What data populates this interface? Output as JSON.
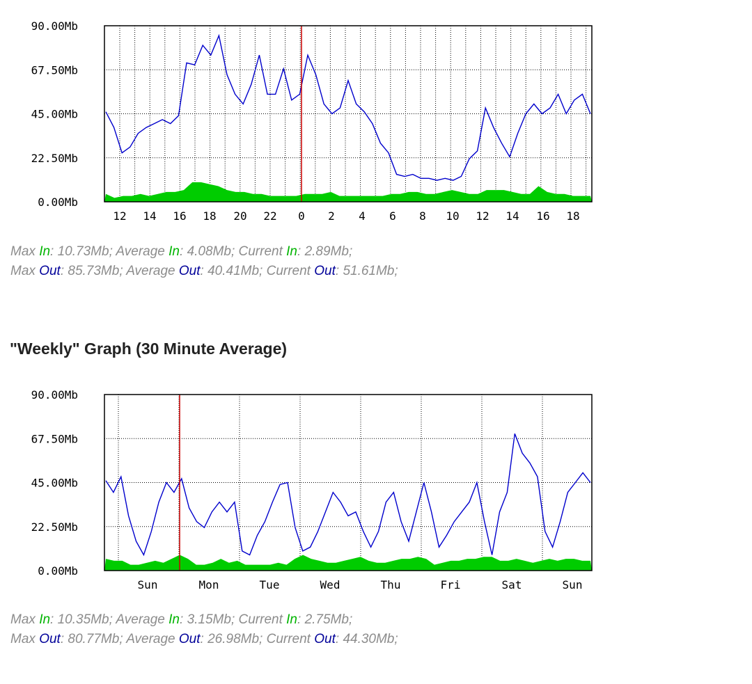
{
  "chart_data": [
    {
      "type": "area",
      "title": "",
      "y_tick_labels": [
        "90.00Mb",
        "67.50Mb",
        "45.00Mb",
        "22.50Mb",
        "0.00Mb"
      ],
      "ylim": [
        0,
        90
      ],
      "y_unit": "Mb",
      "x_tick_labels": [
        "12",
        "14",
        "16",
        "18",
        "20",
        "22",
        "0",
        "2",
        "4",
        "6",
        "8",
        "10",
        "12",
        "14",
        "16",
        "18"
      ],
      "grid": true,
      "marker_label": "0",
      "series": [
        {
          "color": "#00cc00",
          "values": [
            4,
            2,
            3,
            3,
            4,
            3,
            4,
            5,
            5,
            6,
            10,
            10,
            9,
            8,
            6,
            5,
            5,
            4,
            4,
            3,
            3,
            3,
            3,
            4,
            4,
            4,
            5,
            3,
            3,
            3,
            3,
            3,
            3,
            4,
            4,
            5,
            5,
            4,
            4,
            5,
            6,
            5,
            4,
            4,
            6,
            6,
            6,
            5,
            4,
            4,
            8,
            5,
            4,
            4,
            3,
            3,
            3
          ]
        },
        {
          "color": "#0000cc",
          "values": [
            46,
            38,
            25,
            28,
            35,
            38,
            40,
            42,
            40,
            44,
            71,
            70,
            80,
            75,
            85,
            65,
            55,
            50,
            60,
            75,
            55,
            55,
            68,
            52,
            55,
            75,
            65,
            50,
            45,
            48,
            62,
            50,
            46,
            40,
            30,
            25,
            14,
            13,
            14,
            12,
            12,
            11,
            12,
            11,
            13,
            22,
            26,
            48,
            38,
            30,
            23,
            35,
            45,
            50,
            45,
            48,
            55,
            45,
            52,
            55,
            45
          ]
        }
      ]
    },
    {
      "type": "area",
      "title": "\"Weekly\" Graph (30 Minute Average)",
      "y_tick_labels": [
        "90.00Mb",
        "67.50Mb",
        "45.00Mb",
        "22.50Mb",
        "0.00Mb"
      ],
      "ylim": [
        0,
        90
      ],
      "y_unit": "Mb",
      "x_tick_labels": [
        "Sun",
        "Mon",
        "Tue",
        "Wed",
        "Thu",
        "Fri",
        "Sat",
        "Sun"
      ],
      "grid": true,
      "marker_label": "Mon",
      "series": [
        {
          "color": "#00cc00",
          "values": [
            6,
            5,
            5,
            3,
            3,
            4,
            5,
            4,
            6,
            8,
            6,
            3,
            3,
            4,
            6,
            4,
            5,
            3,
            3,
            3,
            3,
            4,
            3,
            6,
            8,
            6,
            5,
            4,
            4,
            5,
            6,
            7,
            5,
            4,
            4,
            5,
            6,
            6,
            7,
            6,
            3,
            4,
            5,
            5,
            6,
            6,
            7,
            7,
            5,
            5,
            6,
            5,
            4,
            5,
            6,
            5,
            6,
            6,
            5,
            5
          ]
        },
        {
          "color": "#0000cc",
          "values": [
            46,
            40,
            48,
            28,
            15,
            8,
            20,
            35,
            45,
            40,
            47,
            32,
            25,
            22,
            30,
            35,
            30,
            35,
            10,
            8,
            18,
            25,
            35,
            44,
            45,
            22,
            10,
            12,
            20,
            30,
            40,
            35,
            28,
            30,
            20,
            12,
            20,
            35,
            40,
            25,
            15,
            30,
            45,
            30,
            12,
            18,
            25,
            30,
            35,
            45,
            25,
            8,
            30,
            40,
            70,
            60,
            55,
            48,
            20,
            12,
            25,
            40,
            45,
            50,
            45
          ]
        }
      ]
    }
  ],
  "stats": [
    {
      "in_line": {
        "max": "10.73Mb",
        "avg": "4.08Mb",
        "cur": "2.89Mb"
      },
      "out_line": {
        "max": "85.73Mb",
        "avg": "40.41Mb",
        "cur": "51.61Mb"
      }
    },
    {
      "in_line": {
        "max": "10.35Mb",
        "avg": "3.15Mb",
        "cur": "2.75Mb"
      },
      "out_line": {
        "max": "80.77Mb",
        "avg": "26.98Mb",
        "cur": "44.30Mb"
      }
    }
  ],
  "labels": {
    "max": "Max",
    "average": "Average",
    "current": "Current",
    "in": "In",
    "out": "Out"
  },
  "colors": {
    "in": "#00cc00",
    "out": "#0000cc",
    "marker": "#cc0000",
    "stats_text": "#8c8c8c"
  }
}
